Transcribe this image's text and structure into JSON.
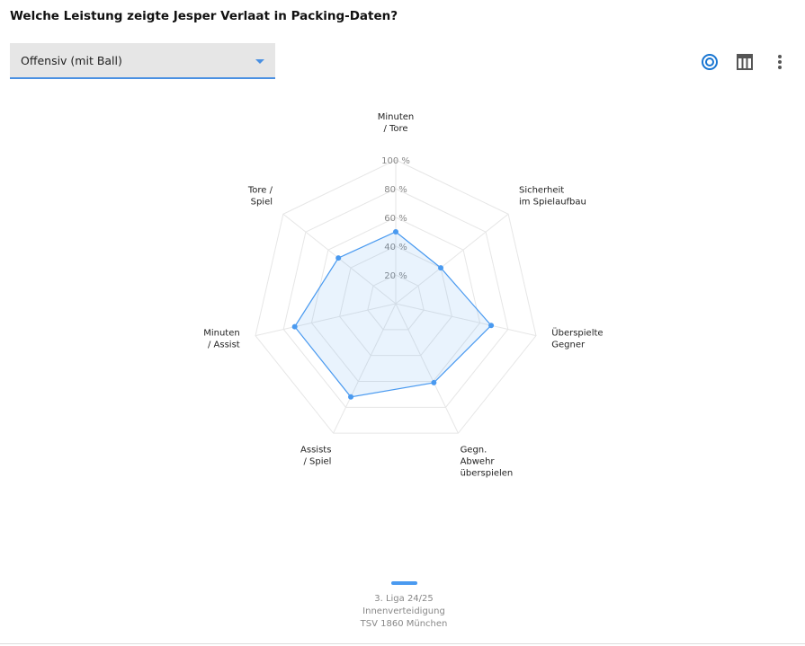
{
  "header": {
    "title": "Welche Leistung zeigte Jesper Verlaat in Packing-Daten?",
    "dropdown": "Offensiv (mit Ball)"
  },
  "chart_data": {
    "type": "radar",
    "categories": [
      [
        "Minuten",
        "/ Tore"
      ],
      [
        "Sicherheit",
        "im Spielaufbau"
      ],
      [
        "Überspielte",
        "Gegner"
      ],
      [
        "Gegn.",
        "Abwehr",
        "überspielen"
      ],
      [
        "Assists",
        "/ Spiel"
      ],
      [
        "Minuten",
        "/ Assist"
      ],
      [
        "Tore /",
        "Spiel"
      ]
    ],
    "series": [
      {
        "name": "3. Liga 24/25",
        "position": "Innenverteidigung",
        "team": "TSV 1860 München",
        "color": "#4a9af0",
        "values": [
          50,
          40,
          68,
          61,
          72,
          72,
          51
        ]
      }
    ],
    "rlim": [
      0,
      100
    ],
    "rticks": [
      {
        "value": 20,
        "label": "20 %"
      },
      {
        "value": 40,
        "label": "40 %"
      },
      {
        "value": 60,
        "label": "60 %"
      },
      {
        "value": 80,
        "label": "80 %"
      },
      {
        "value": 100,
        "label": "100 %"
      }
    ]
  }
}
